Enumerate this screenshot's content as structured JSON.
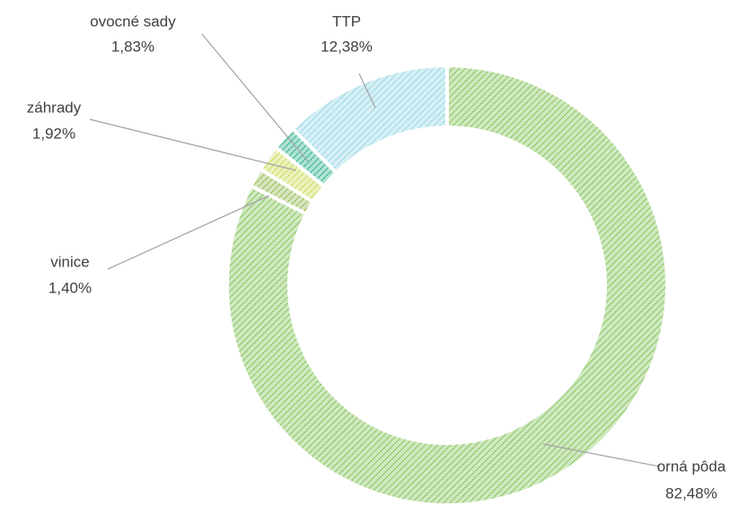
{
  "chart_data": {
    "type": "donut",
    "categories": [
      "orná pôda",
      "vinice",
      "záhrady",
      "ovocné sady",
      "TTP"
    ],
    "values": [
      82.48,
      1.4,
      1.92,
      1.83,
      12.38
    ],
    "value_labels": [
      "82,48%",
      "1,40%",
      "1,92%",
      "1,83%",
      "12,38%"
    ],
    "colors": [
      "#7cbf4f",
      "#8fb84a",
      "#c9d94e",
      "#23ad86",
      "#8fd3e3"
    ]
  }
}
